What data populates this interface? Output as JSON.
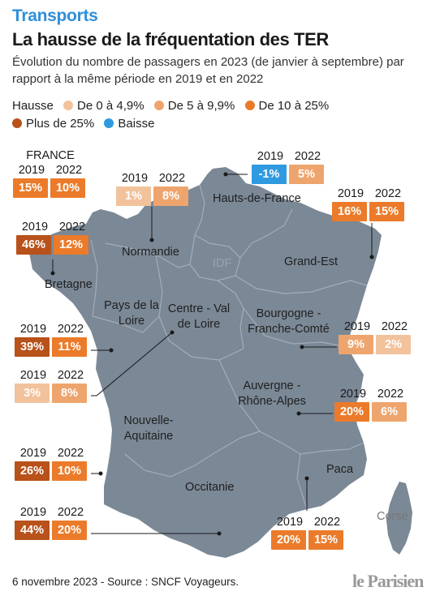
{
  "kicker": "Transports",
  "title": "La hausse de la fréquentation des TER",
  "subtitle": "Évolution du nombre de passagers en 2023 (de janvier à septembre) par rapport à la même période en 2019 et en 2022",
  "colors": {
    "accent": "#2f8fd8",
    "map_fill": "#7b8896",
    "border": "#a3adb8",
    "leader": "#1a1a1a"
  },
  "legend": {
    "label": "Hausse",
    "items": [
      {
        "label": "De 0 à 4,9%",
        "color": "#f2c29c"
      },
      {
        "label": "De 5 à 9,9%",
        "color": "#eea56d"
      },
      {
        "label": "De 10 à 25%",
        "color": "#eb7b2a"
      },
      {
        "label": "Plus de 25%",
        "color": "#b8511a"
      },
      {
        "label": "Baisse",
        "color": "#2f9ae0"
      }
    ]
  },
  "year_labels": [
    "2019",
    "2022"
  ],
  "regions": {
    "hauts_de_france": "Hauts-de-France",
    "normandie": "Normandie",
    "idf": "IDF",
    "grand_est": "Grand-Est",
    "bretagne": "Bretagne",
    "pays_de_la_loire": "Pays de la Loire",
    "centre": "Centre - Val de Loire",
    "bourgogne": "Bourgogne - Franche-Comté",
    "nouvelle_aquitaine": "Nouvelle-Aquitaine",
    "auvergne": "Auvergne - Rhône-Alpes",
    "occitanie": "Occitanie",
    "paca": "Paca",
    "corse": "Corse"
  },
  "callouts": {
    "france": {
      "title": "FRANCE",
      "v2019": "15%",
      "v2022": "10%",
      "c2019": "#eb7b2a",
      "c2022": "#eb7b2a"
    },
    "normandie": {
      "v2019": "1%",
      "v2022": "8%",
      "c2019": "#f2c29c",
      "c2022": "#eea56d"
    },
    "hauts_de_france": {
      "v2019": "-1%",
      "v2022": "5%",
      "c2019": "#2f9ae0",
      "c2022": "#eea56d"
    },
    "grand_est": {
      "v2019": "16%",
      "v2022": "15%",
      "c2019": "#eb7b2a",
      "c2022": "#eb7b2a"
    },
    "bretagne": {
      "v2019": "46%",
      "v2022": "12%",
      "c2019": "#b8511a",
      "c2022": "#eb7b2a"
    },
    "pays_de_la_loire": {
      "v2019": "39%",
      "v2022": "11%",
      "c2019": "#b8511a",
      "c2022": "#eb7b2a"
    },
    "centre": {
      "v2019": "3%",
      "v2022": "8%",
      "c2019": "#f2c29c",
      "c2022": "#eea56d"
    },
    "bourgogne": {
      "v2019": "9%",
      "v2022": "2%",
      "c2019": "#eea56d",
      "c2022": "#f2c29c"
    },
    "auvergne": {
      "v2019": "20%",
      "v2022": "6%",
      "c2019": "#eb7b2a",
      "c2022": "#eea56d"
    },
    "nouvelle_aquitaine": {
      "v2019": "26%",
      "v2022": "10%",
      "c2019": "#b8511a",
      "c2022": "#eb7b2a"
    },
    "occitanie": {
      "v2019": "44%",
      "v2022": "20%",
      "c2019": "#b8511a",
      "c2022": "#eb7b2a"
    },
    "paca": {
      "v2019": "20%",
      "v2022": "15%",
      "c2019": "#eb7b2a",
      "c2022": "#eb7b2a"
    }
  },
  "footer": "6 novembre 2023 - Source : SNCF Voyageurs.",
  "logo": "le Parisien"
}
